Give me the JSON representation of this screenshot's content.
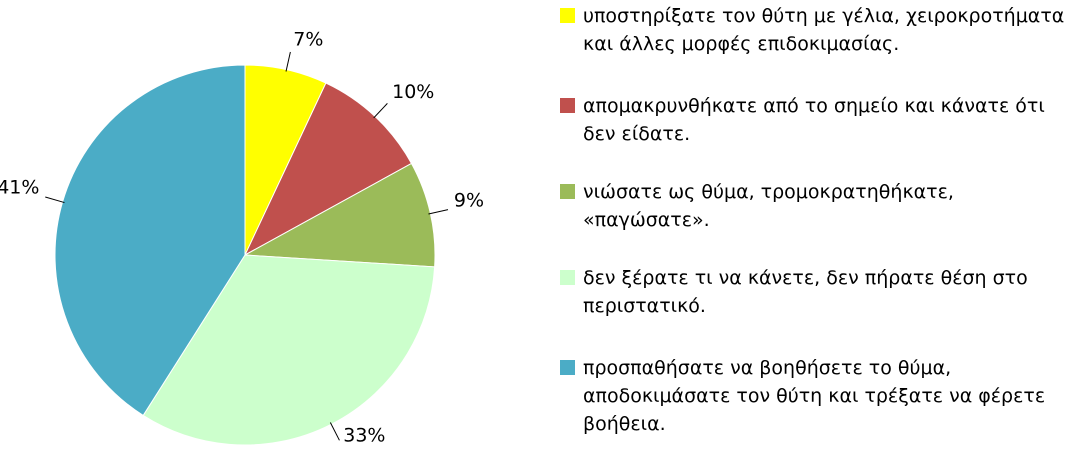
{
  "chart_data": {
    "type": "pie",
    "categories": [
      "υποστηρίξατε τον θύτη με γέλια, χειροκροτήματα και άλλες μορφές επιδοκιμασίας.",
      "απομακρυνθήκατε από το σημείο και κάνατε ότι δεν είδατε.",
      "νιώσατε ως θύμα, τρομοκρατηθήκατε, «παγώσατε».",
      "δεν ξέρατε τι να κάνετε, δεν πήρατε θέση στο περιστατικό.",
      "προσπαθήσατε να βοηθήσετε το θύμα, αποδοκιμάσατε τον θύτη και τρέξατε να φέρετε βοήθεια."
    ],
    "values": [
      7,
      10,
      9,
      33,
      41
    ],
    "value_labels": [
      "7%",
      "10%",
      "9%",
      "33%",
      "41%"
    ],
    "colors": [
      "#ffff00",
      "#c0504d",
      "#9bbb59",
      "#ccffcc",
      "#4bacc6"
    ],
    "legend": "right"
  }
}
